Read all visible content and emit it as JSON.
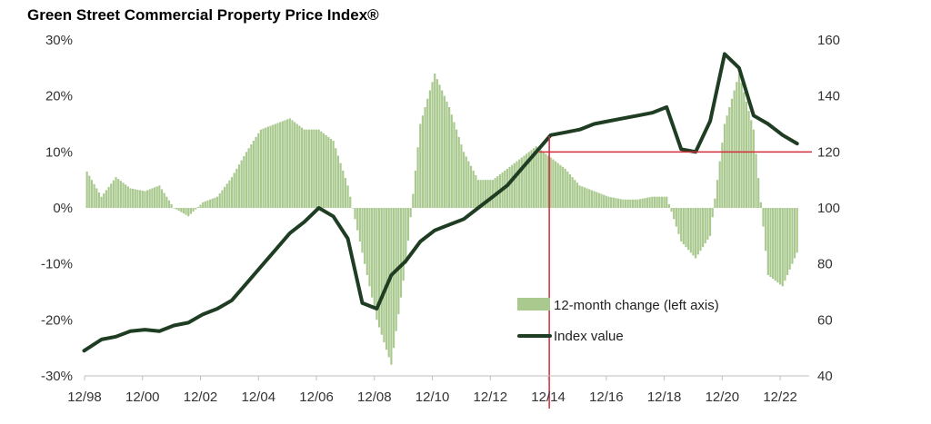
{
  "title": "Green Street Commercial Property Price Index®",
  "colors": {
    "bars": "#a9c98f",
    "line": "#1f3d23",
    "marker": "#d22b3a",
    "axis": "#bfbfbf"
  },
  "chart_data": {
    "type": "bar+line",
    "title": "Green Street Commercial Property Price Index®",
    "x_tick_labels": [
      "12/98",
      "12/00",
      "12/02",
      "12/04",
      "12/06",
      "12/08",
      "12/10",
      "12/12",
      "12/14",
      "12/16",
      "12/18",
      "12/20",
      "12/22"
    ],
    "left_axis": {
      "ticks": [
        "30%",
        "20%",
        "10%",
        "0%",
        "-10%",
        "-20%",
        "-30%"
      ],
      "range": [
        -30,
        30
      ],
      "unit": "%"
    },
    "right_axis": {
      "ticks": [
        "160",
        "140",
        "120",
        "100",
        "80",
        "60",
        "40"
      ],
      "range": [
        40,
        160
      ]
    },
    "legend": [
      "12-month change (left axis)",
      "Index value"
    ],
    "bar_series": {
      "name": "12-month change (left axis)",
      "x": [
        1999.0,
        1999.5,
        2000.0,
        2000.5,
        2001.0,
        2001.5,
        2002.0,
        2002.5,
        2003.0,
        2003.5,
        2004.0,
        2004.5,
        2005.0,
        2005.5,
        2006.0,
        2006.5,
        2007.0,
        2007.5,
        2008.0,
        2008.5,
        2009.0,
        2009.5,
        2010.0,
        2010.5,
        2011.0,
        2011.5,
        2012.0,
        2012.5,
        2013.0,
        2013.5,
        2014.0,
        2014.5,
        2015.0,
        2015.5,
        2016.0,
        2016.5,
        2017.0,
        2017.5,
        2018.0,
        2018.5,
        2019.0,
        2019.5,
        2020.0,
        2020.5,
        2021.0,
        2021.5,
        2022.0,
        2022.5,
        2023.0,
        2023.5
      ],
      "values": [
        6.5,
        2,
        5.5,
        3.5,
        3,
        4,
        0,
        -1.5,
        1,
        2,
        5.5,
        10,
        14,
        15,
        16,
        14,
        14,
        12,
        4,
        -8,
        -20,
        -28,
        -10,
        15,
        24,
        18,
        10,
        5,
        5,
        7,
        9,
        11,
        9,
        7,
        4,
        3,
        2,
        1.5,
        1.5,
        2,
        2,
        -6,
        -9,
        -5,
        15,
        24,
        14,
        -12,
        -14,
        -8
      ]
    },
    "line_series": {
      "name": "Index value",
      "x": [
        1998.9,
        1999.5,
        2000.0,
        2000.5,
        2001.0,
        2001.5,
        2002.0,
        2002.5,
        2003.0,
        2003.5,
        2004.0,
        2004.5,
        2005.0,
        2005.5,
        2006.0,
        2006.5,
        2007.0,
        2007.5,
        2008.0,
        2008.5,
        2009.0,
        2009.5,
        2010.0,
        2010.5,
        2011.0,
        2011.5,
        2012.0,
        2012.5,
        2013.0,
        2013.5,
        2014.0,
        2014.5,
        2015.0,
        2015.5,
        2016.0,
        2016.5,
        2017.0,
        2017.5,
        2018.0,
        2018.5,
        2019.0,
        2019.5,
        2020.0,
        2020.5,
        2021.0,
        2021.5,
        2022.0,
        2022.5,
        2023.0,
        2023.5
      ],
      "values": [
        49,
        53,
        54,
        56,
        56.5,
        56,
        58,
        59,
        62,
        64,
        67,
        73,
        79,
        85,
        91,
        95,
        100,
        97,
        89,
        66,
        64,
        76,
        81,
        88,
        92,
        94,
        96,
        100,
        104,
        108,
        114,
        120,
        126,
        127,
        128,
        130,
        131,
        132,
        133,
        134,
        136,
        121,
        120,
        131,
        155,
        150,
        133,
        130,
        126,
        123
      ]
    },
    "reference_lines": {
      "vertical_x": 2014.95,
      "horizontal_right_value": 120
    }
  }
}
